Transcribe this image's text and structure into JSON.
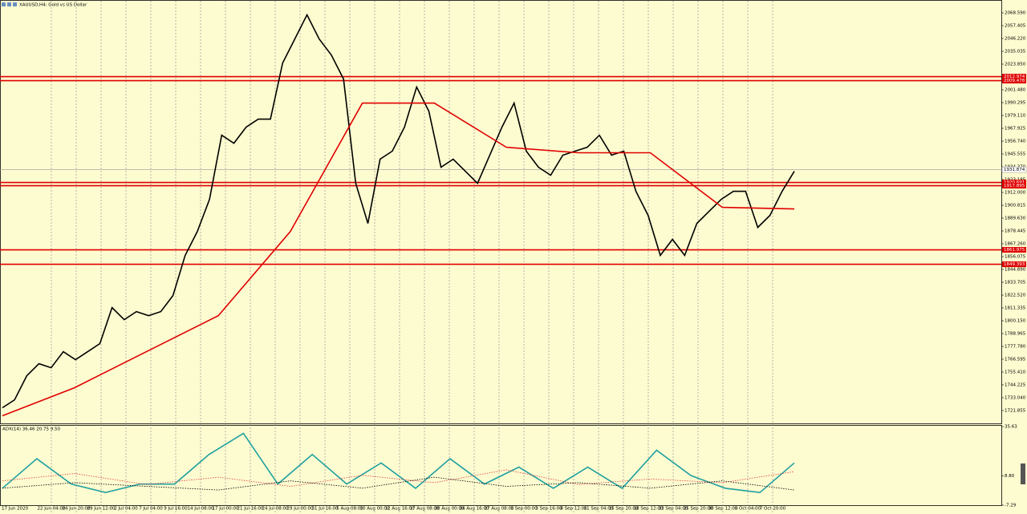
{
  "chart_data": [
    {
      "type": "line",
      "title": "XAUUSD,H4: Gold vs US Dollar",
      "ylim": [
        1710.67,
        2079.775
      ],
      "yticks": [
        1721.855,
        {
          "value": 1733.04,
          "label": "1733.040"
        },
        1744.225,
        {
          "value": 1755.41,
          "label": "1755.410"
        },
        1766.595,
        {
          "value": 1777.78,
          "label": "1777.780"
        },
        1788.965,
        {
          "value": 1800.15,
          "label": "1800.150"
        },
        1811.335,
        {
          "value": 1822.52,
          "label": "1822.520"
        },
        1833.705,
        {
          "value": 1844.89,
          "label": "1844.890"
        },
        1856.075,
        {
          "value": 1867.26,
          "label": "1867.260"
        },
        1878.445,
        {
          "value": 1889.63,
          "label": "1889.630"
        },
        1900.815,
        {
          "value": 1912,
          "label": "1912.000"
        },
        1923.185,
        {
          "value": 1934.37,
          "label": "1934.370"
        },
        1945.555,
        {
          "value": 1956.74,
          "label": "1956.740"
        },
        1967.925,
        {
          "value": 1979.11,
          "label": "1979.110"
        },
        1990.295,
        {
          "value": 2001.48,
          "label": "2001.480"
        },
        2012.665,
        {
          "value": 2023.85,
          "label": "2023.850"
        },
        2035.035,
        {
          "value": 2046.22,
          "label": "2046.220"
        },
        2057.405,
        {
          "value": 2068.59,
          "label": "2068.590"
        }
      ],
      "xticks": [
        "17 Jun 2020",
        "22 Jun 04:00",
        "24 Jun 20:00",
        "29 Jun 12:00",
        "2 Jul 04:00",
        "7 Jul 04:00",
        "9 Jul 16:00",
        "14 Jul 08:00",
        "17 Jul 00:00",
        "21 Jul 16:00",
        "24 Jul 08:00",
        "29 Jul 00:00",
        "31 Jul 16:00",
        "5 Aug 08:00",
        "10 Aug 00:00",
        "12 Aug 16:00",
        "17 Aug 08:00",
        "20 Aug 00:00",
        "24 Aug 16:00",
        "27 Aug 08:00",
        "1 Sep 00:00",
        "3 Sep 16:00",
        "8 Sep 12:00",
        "11 Sep 04:00",
        "15 Sep 20:00",
        "18 Sep 12:00",
        "23 Sep 04:00",
        "25 Sep 20:00",
        "30 Sep 12:00",
        "5 Oct 04:00",
        "7 Oct 20:00"
      ],
      "grid": true,
      "series": [
        {
          "color": "#000000",
          "values": [
            1724.3,
            1731.2,
            1752.2,
            1762.7,
            1759.2,
            1773.2,
            1766.2,
            1773.2,
            1780.2,
            1811.6,
            1801.1,
            1808.1,
            1804.6,
            1808.1,
            1822.1,
            1857.1,
            1878.0,
            1906.0,
            1961.9,
            1954.9,
            1968.9,
            1975.9,
            1975.9,
            2024.8,
            2045.8,
            2066.8,
            2045.8,
            2031.8,
            2010.9,
            1920.0,
            1885.0,
            1941.0,
            1948.0,
            1968.9,
            2003.9,
            1982.9,
            1934.0,
            1941.0,
            1930.5,
            1920.0,
            1944.5,
            1968.9,
            1989.9,
            1948.0,
            1934.0,
            1927.0,
            1944.5,
            1948.0,
            1951.4,
            1961.9,
            1944.5,
            1948.0,
            1913.0,
            1892.0,
            1857.1,
            1871.1,
            1857.1,
            1885.0,
            1895.5,
            1906.0,
            1913.0,
            1913.0,
            1881.5,
            1892.0,
            1913.0,
            1930.5
          ]
        },
        {
          "color": "#e00000",
          "values": [
            1717.3,
            1741.7,
            1773.2,
            1804.6,
            1878.0,
            1989.9,
            1989.9,
            1951.4,
            1946.6,
            1946.6,
            1899.0,
            1897.6
          ]
        }
      ],
      "levels": [
        2012.974,
        2009.478,
        1920.691,
        1917.895,
        1861.975,
        1849.393
      ],
      "level_color": "#e00000",
      "last": 1931.874
    },
    {
      "type": "line",
      "title": "ADX(14) 36.46 20.75 9.50",
      "ylim": [
        -7.29,
        35.63
      ],
      "yticks": [
        35.63,
        {
          "value": 8.8,
          "label": "8.80"
        },
        -7.29
      ],
      "series": [
        {
          "color": "#20a0a0",
          "values": [
            1.94,
            18.09,
            4.25,
            -0.37,
            4.25,
            4.25,
            20.4,
            31.94,
            4.25,
            20.4,
            4.25,
            15.79,
            1.94,
            18.09,
            4.25,
            13.48,
            1.94,
            13.48,
            1.94,
            22.71,
            8.86,
            1.94,
            -0.37,
            15.79
          ]
        },
        {
          "color": "#e04040",
          "dash": true,
          "values": [
            6,
            10,
            4,
            8,
            3,
            9,
            5,
            12,
            4,
            7,
            5,
            11
          ]
        },
        {
          "color": "#000000",
          "dash": true,
          "values": [
            2,
            5,
            3,
            1,
            6,
            2,
            8,
            3,
            5,
            2,
            6,
            1
          ]
        }
      ]
    }
  ]
}
